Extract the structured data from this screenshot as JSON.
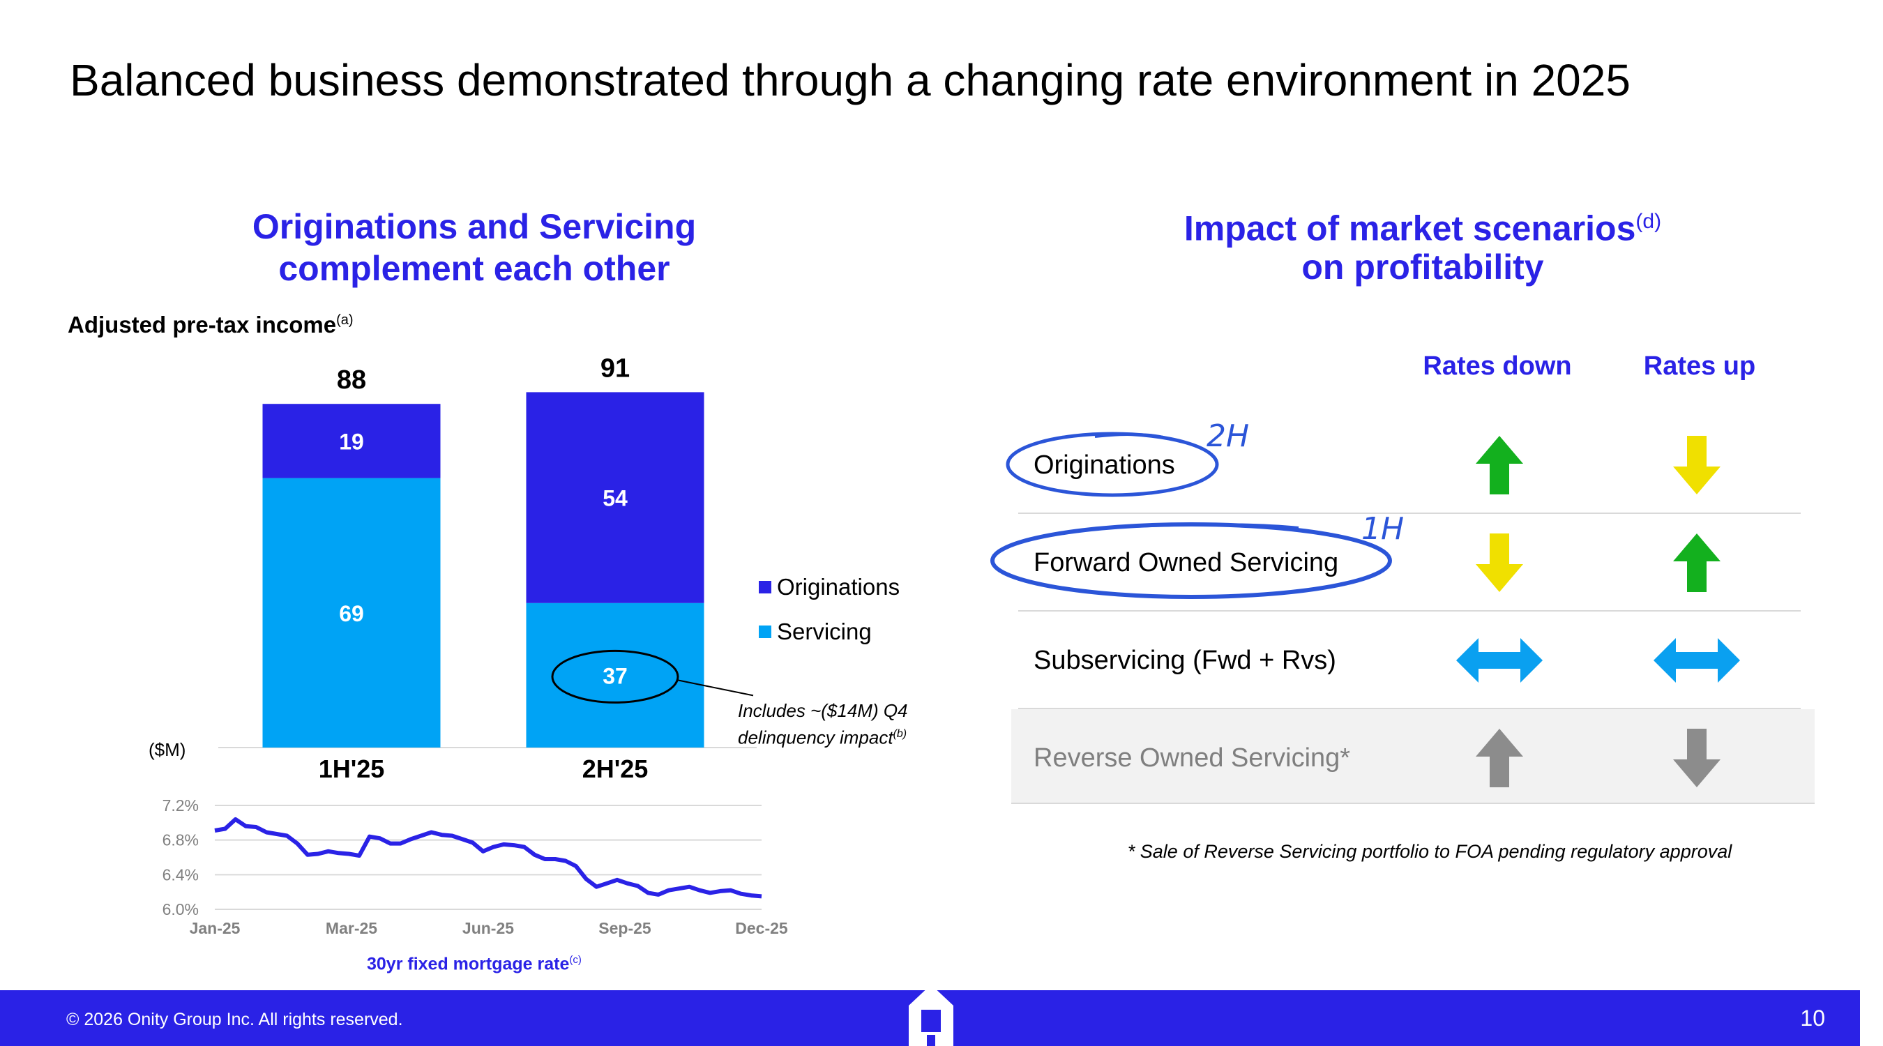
{
  "slide_title": "Balanced business demonstrated through a changing rate environment in 2025",
  "left_heading": {
    "line1": "Originations and Servicing",
    "line2": "complement each other"
  },
  "subtitle": {
    "text": "Adjusted pre-tax income",
    "note": "(a)"
  },
  "unit_label": "($M)",
  "legend": {
    "originations": "Originations",
    "servicing": "Servicing"
  },
  "annotation": {
    "line1": "Includes ~($14M) Q4",
    "line2": "delinquency impact",
    "note": "(b)"
  },
  "line_title": {
    "text": "30yr fixed mortgage rate",
    "note": "(c)"
  },
  "right_heading": {
    "line1": "Impact of market scenarios",
    "note": "(d)",
    "line2": "on profitability"
  },
  "columns": {
    "rates_down": "Rates down",
    "rates_up": "Rates up"
  },
  "rows": [
    {
      "label": "Originations",
      "rates_down": "up",
      "rates_up": "down"
    },
    {
      "label": "Forward Owned Servicing",
      "rates_down": "down",
      "rates_up": "up"
    },
    {
      "label": "Subservicing (Fwd + Rvs)",
      "rates_down": "both",
      "rates_up": "both"
    },
    {
      "label": "Reverse Owned Servicing*",
      "rates_down": "up",
      "rates_up": "down"
    }
  ],
  "handwritten": {
    "orig_note": "2H",
    "fos_note": "1H"
  },
  "footnote": "* Sale of Reverse Servicing portfolio to FOA pending regulatory approval",
  "footer": {
    "copyright": "© 2026 Onity Group Inc. All rights reserved.",
    "page_number": "10"
  },
  "colors": {
    "brand": "#2a22e6",
    "servicing": "#00a3f5",
    "green": "#13b01e",
    "yellow": "#f0e000",
    "blue_arrow": "#0aa0f0",
    "grey_arrow": "#8c8c8c"
  },
  "chart_data": [
    {
      "type": "bar",
      "title": "Adjusted pre-tax income",
      "ylabel": "($M)",
      "categories": [
        "1H'25",
        "2H'25"
      ],
      "series": [
        {
          "name": "Servicing",
          "values": [
            69,
            37
          ]
        },
        {
          "name": "Originations",
          "values": [
            19,
            54
          ]
        }
      ],
      "totals": [
        88,
        91
      ],
      "stacked": true,
      "legend_position": "right"
    },
    {
      "type": "line",
      "title": "30yr fixed mortgage rate",
      "x_ticks": [
        "Jan-25",
        "Mar-25",
        "Jun-25",
        "Sep-25",
        "Dec-25"
      ],
      "y_ticks": [
        "7.2%",
        "6.8%",
        "6.4%",
        "6.0%"
      ],
      "ylim": [
        6.0,
        7.2
      ],
      "grid": true,
      "values": [
        6.91,
        6.93,
        7.04,
        6.96,
        6.95,
        6.89,
        6.87,
        6.85,
        6.76,
        6.63,
        6.64,
        6.67,
        6.65,
        6.64,
        6.62,
        6.84,
        6.82,
        6.76,
        6.76,
        6.81,
        6.85,
        6.89,
        6.86,
        6.85,
        6.81,
        6.77,
        6.67,
        6.72,
        6.75,
        6.74,
        6.72,
        6.63,
        6.58,
        6.58,
        6.56,
        6.5,
        6.35,
        6.26,
        6.3,
        6.34,
        6.3,
        6.27,
        6.19,
        6.17,
        6.22,
        6.24,
        6.26,
        6.22,
        6.19,
        6.21,
        6.22,
        6.18,
        6.16,
        6.15
      ]
    }
  ]
}
